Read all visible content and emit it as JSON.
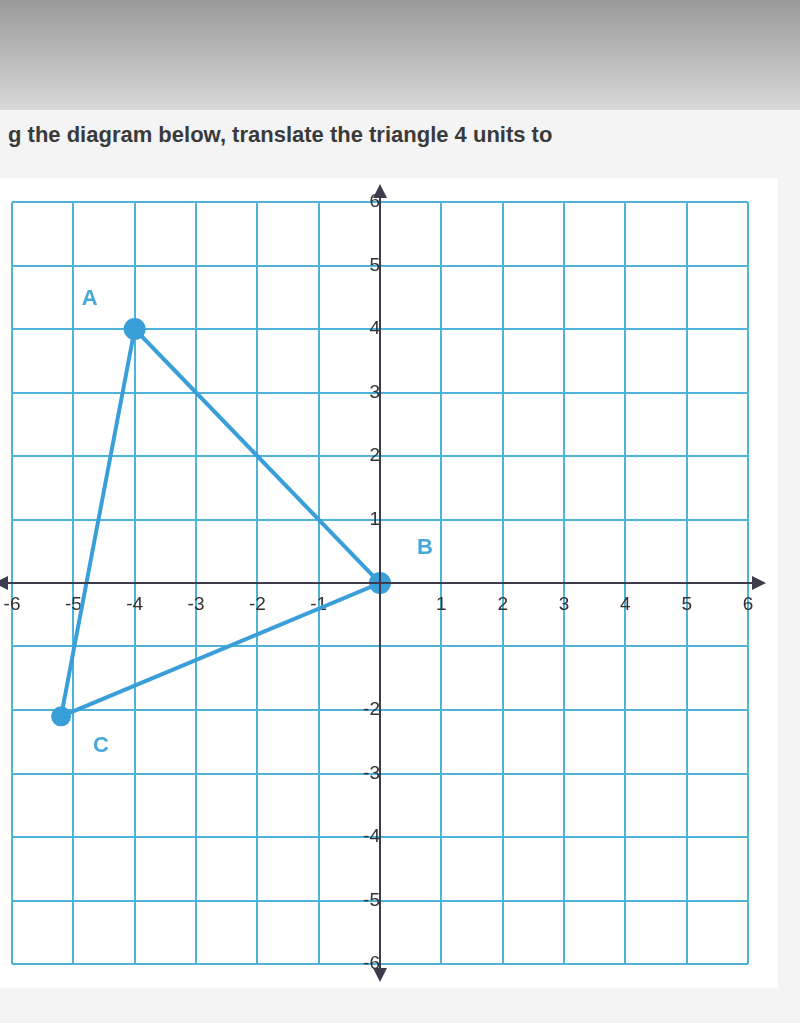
{
  "chart_data": {
    "type": "scatter",
    "title": "g the diagram below, translate the triangle 4 units to",
    "x": [
      -4,
      0,
      -5.2
    ],
    "values": [
      4,
      0,
      -2.1
    ],
    "annotations": [
      {
        "text": "A",
        "x": -4,
        "y": 4
      },
      {
        "text": "B",
        "x": 0,
        "y": 0
      },
      {
        "text": "C",
        "x": -5.2,
        "y": -2.1
      }
    ],
    "color": "#3a9fd8",
    "line_style": "solid",
    "marker": "circle",
    "xlim": [
      -6,
      6
    ],
    "ylim": [
      -6,
      6
    ],
    "xticks": [
      -6,
      -5,
      -4,
      -3,
      -2,
      -1,
      1,
      2,
      3,
      4,
      5,
      6
    ],
    "yticks": [
      -6,
      -5,
      -4,
      -3,
      -2,
      1,
      2,
      3,
      4,
      5,
      6
    ],
    "grid": true
  }
}
